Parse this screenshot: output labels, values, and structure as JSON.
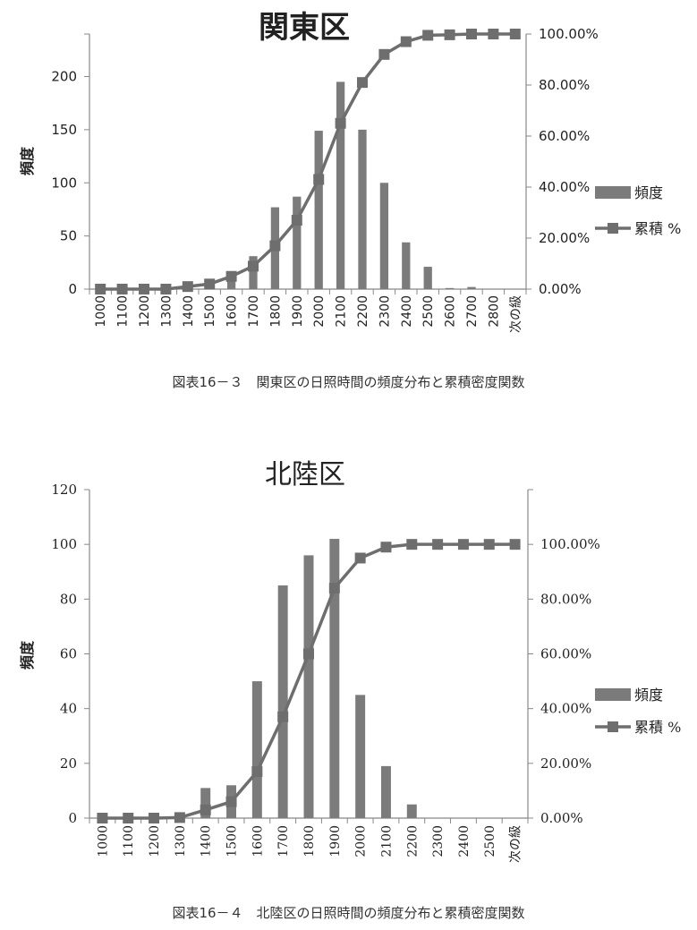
{
  "chart_data": [
    {
      "type": "bar",
      "title": "関東区",
      "ylabel": "頻度",
      "ylim": [
        0,
        240
      ],
      "y_ticks": [
        "0",
        "50",
        "100",
        "150",
        "200"
      ],
      "y2lim": [
        0,
        1
      ],
      "y2_ticks": [
        "0.00%",
        "20.00%",
        "40.00%",
        "60.00%",
        "80.00%",
        "100.00%"
      ],
      "categories": [
        "1000",
        "1100",
        "1200",
        "1300",
        "1400",
        "1500",
        "1600",
        "1700",
        "1800",
        "1900",
        "2000",
        "2100",
        "2200",
        "2300",
        "2400",
        "2500",
        "2600",
        "2700",
        "2800",
        "次の級"
      ],
      "series": [
        {
          "name": "頻度",
          "type": "bar",
          "axis": "left",
          "values": [
            0,
            0,
            0,
            0,
            1,
            3,
            11,
            31,
            77,
            87,
            149,
            195,
            150,
            100,
            44,
            21,
            1,
            2,
            0,
            0
          ]
        },
        {
          "name": "累積 %",
          "type": "line",
          "axis": "right",
          "values": [
            0,
            0,
            0,
            0,
            0.01,
            0.02,
            0.05,
            0.09,
            0.17,
            0.27,
            0.43,
            0.65,
            0.81,
            0.92,
            0.97,
            0.995,
            0.997,
            1.0,
            1.0,
            1.0
          ]
        }
      ],
      "legend": "right",
      "caption": "図表16－３　関東区の日照時間の頻度分布と累積密度関数"
    },
    {
      "type": "bar",
      "title": "北陸区",
      "ylabel": "頻度",
      "ylim": [
        0,
        120
      ],
      "y_ticks": [
        "0",
        "20",
        "40",
        "60",
        "80",
        "100",
        "120"
      ],
      "y2lim": [
        0,
        1.2
      ],
      "y2_ticks": [
        "0.00%",
        "20.00%",
        "40.00%",
        "60.00%",
        "80.00%",
        "100.00%"
      ],
      "categories": [
        "1000",
        "1100",
        "1200",
        "1300",
        "1400",
        "1500",
        "1600",
        "1700",
        "1800",
        "1900",
        "2000",
        "2100",
        "2200",
        "2300",
        "2400",
        "2500",
        "次の級"
      ],
      "series": [
        {
          "name": "頻度",
          "type": "bar",
          "axis": "left",
          "values": [
            0,
            0,
            0,
            1,
            11,
            12,
            50,
            85,
            96,
            102,
            45,
            19,
            5,
            0,
            0,
            0,
            0
          ]
        },
        {
          "name": "累積 %",
          "type": "line",
          "axis": "right",
          "values": [
            0,
            0,
            0,
            0.002,
            0.03,
            0.06,
            0.17,
            0.37,
            0.6,
            0.84,
            0.95,
            0.99,
            1.0,
            1.0,
            1.0,
            1.0,
            1.0
          ]
        }
      ],
      "legend": "right",
      "caption": "図表16－４　北陸区の日照時間の頻度分布と累積密度関数"
    }
  ],
  "colors": {
    "bar": "#7b7b7b",
    "line": "#6e6e6e",
    "axis": "#888888",
    "text": "#222222"
  }
}
